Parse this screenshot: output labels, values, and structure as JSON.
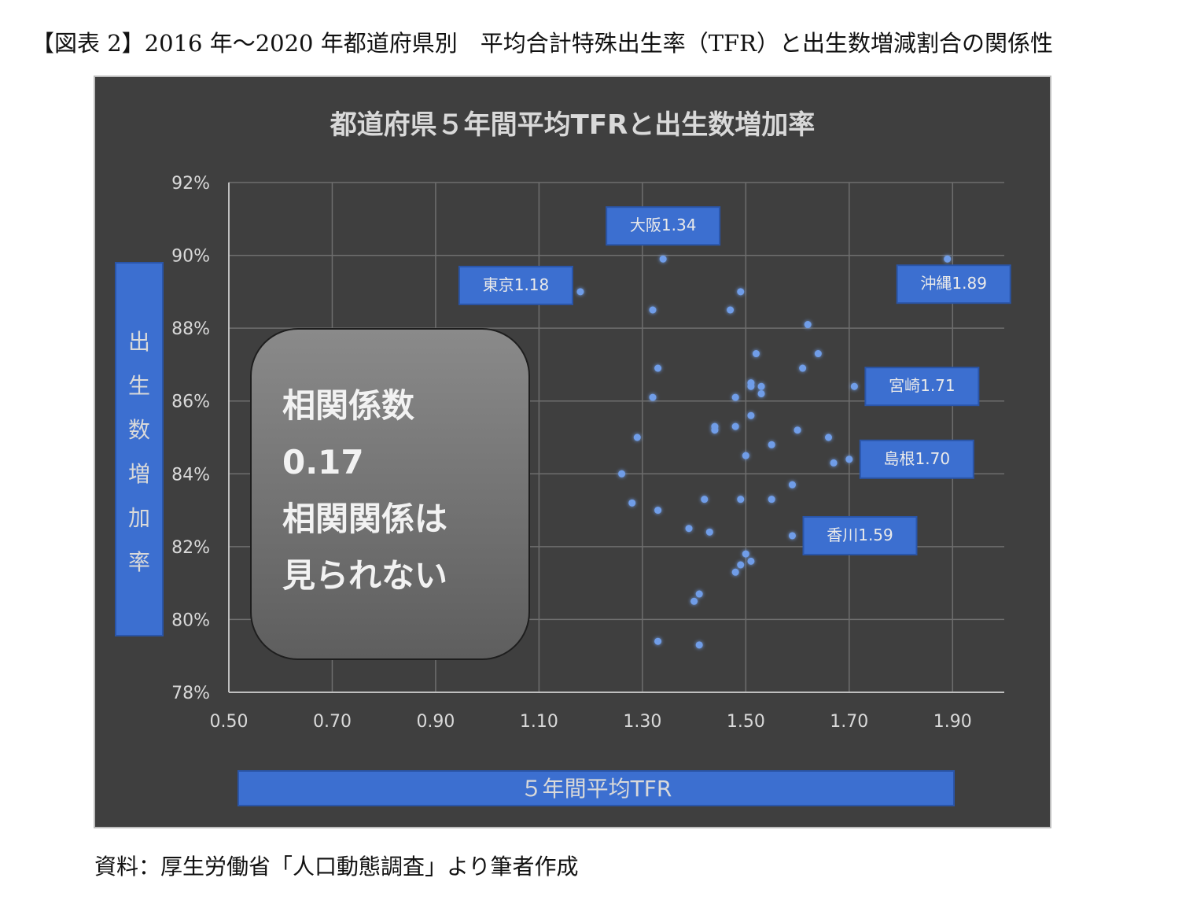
{
  "figure_title": "【図表 2】2016 年～2020 年都道府県別　平均合計特殊出生率（TFR）と出生数増減割合の関係性",
  "source_note": "資料：厚生労働省「人口動態調査」より筆者作成",
  "colors": {
    "chart_background": "#3f3f3f",
    "grid": "#6e6e6e",
    "point": "#6f9de8",
    "label_box": "#3c6fd0",
    "text_light": "#d9d9d9",
    "callout_fill": "#767676"
  },
  "chart_data": {
    "type": "scatter",
    "title": "都道府県５年間平均TFRと出生数増加率",
    "xlabel": "５年間平均TFR",
    "ylabel": "出生数増加率",
    "xlim": [
      0.5,
      2.0
    ],
    "ylim": [
      78,
      92
    ],
    "x_ticks": [
      "0.50",
      "0.70",
      "0.90",
      "1.10",
      "1.30",
      "1.50",
      "1.70",
      "1.90"
    ],
    "y_ticks": [
      "78%",
      "80%",
      "82%",
      "84%",
      "86%",
      "88%",
      "90%",
      "92%"
    ],
    "grid": true,
    "points": [
      {
        "x": 1.34,
        "y": 89.9
      },
      {
        "x": 1.18,
        "y": 89.0
      },
      {
        "x": 1.89,
        "y": 89.9
      },
      {
        "x": 1.49,
        "y": 89.0
      },
      {
        "x": 1.32,
        "y": 88.5
      },
      {
        "x": 1.47,
        "y": 88.5
      },
      {
        "x": 1.62,
        "y": 88.1
      },
      {
        "x": 1.52,
        "y": 87.3
      },
      {
        "x": 1.64,
        "y": 87.3
      },
      {
        "x": 1.33,
        "y": 86.9
      },
      {
        "x": 1.61,
        "y": 86.9
      },
      {
        "x": 1.71,
        "y": 86.4
      },
      {
        "x": 1.51,
        "y": 86.5
      },
      {
        "x": 1.51,
        "y": 86.4
      },
      {
        "x": 1.53,
        "y": 86.4
      },
      {
        "x": 1.53,
        "y": 86.2
      },
      {
        "x": 1.32,
        "y": 86.1
      },
      {
        "x": 1.48,
        "y": 86.1
      },
      {
        "x": 1.51,
        "y": 85.6
      },
      {
        "x": 1.44,
        "y": 85.3
      },
      {
        "x": 1.44,
        "y": 85.2
      },
      {
        "x": 1.48,
        "y": 85.3
      },
      {
        "x": 1.6,
        "y": 85.2
      },
      {
        "x": 1.29,
        "y": 85.0
      },
      {
        "x": 1.66,
        "y": 85.0
      },
      {
        "x": 1.55,
        "y": 84.8
      },
      {
        "x": 1.5,
        "y": 84.5
      },
      {
        "x": 1.67,
        "y": 84.3
      },
      {
        "x": 1.7,
        "y": 84.4
      },
      {
        "x": 1.26,
        "y": 84.0
      },
      {
        "x": 1.59,
        "y": 83.7
      },
      {
        "x": 1.28,
        "y": 83.2
      },
      {
        "x": 1.42,
        "y": 83.3
      },
      {
        "x": 1.49,
        "y": 83.3
      },
      {
        "x": 1.55,
        "y": 83.3
      },
      {
        "x": 1.33,
        "y": 83.0
      },
      {
        "x": 1.39,
        "y": 82.5
      },
      {
        "x": 1.43,
        "y": 82.4
      },
      {
        "x": 1.59,
        "y": 82.3
      },
      {
        "x": 1.5,
        "y": 81.8
      },
      {
        "x": 1.49,
        "y": 81.5
      },
      {
        "x": 1.51,
        "y": 81.6
      },
      {
        "x": 1.48,
        "y": 81.3
      },
      {
        "x": 1.41,
        "y": 80.7
      },
      {
        "x": 1.4,
        "y": 80.5
      },
      {
        "x": 1.33,
        "y": 79.4
      },
      {
        "x": 1.41,
        "y": 79.3
      }
    ],
    "annotations": [
      {
        "text": "大阪1.34",
        "x": 1.34,
        "y": 89.9,
        "position": "above"
      },
      {
        "text": "東京1.18",
        "x": 1.18,
        "y": 89.0,
        "position": "left"
      },
      {
        "text": "沖縄1.89",
        "x": 1.89,
        "y": 89.9,
        "position": "below-right"
      },
      {
        "text": "宮崎1.71",
        "x": 1.71,
        "y": 86.4,
        "position": "right"
      },
      {
        "text": "島根1.70",
        "x": 1.7,
        "y": 84.4,
        "position": "right"
      },
      {
        "text": "香川1.59",
        "x": 1.59,
        "y": 82.3,
        "position": "right"
      }
    ],
    "callout": {
      "lines": [
        "相関係数",
        "0.17",
        "相関関係は",
        "見られない"
      ]
    }
  }
}
